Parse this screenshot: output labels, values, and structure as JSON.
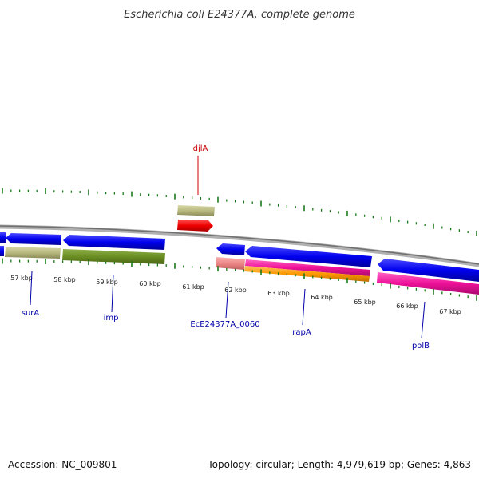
{
  "title": "Escherichia coli E24377A, complete genome",
  "footer": {
    "accession": "Accession: NC_009801",
    "summary": "Topology: circular; Length: 4,979,619 bp; Genes: 4,863"
  },
  "kbp_labels": [
    "57 kbp",
    "58 kbp",
    "59 kbp",
    "60 kbp",
    "61 kbp",
    "62 kbp",
    "63 kbp",
    "64 kbp",
    "65 kbp",
    "66 kbp",
    "67 kbp"
  ],
  "gene_labels": [
    {
      "id": "djlA",
      "text": "djlA",
      "color": "#cc0000"
    },
    {
      "id": "surA",
      "text": "surA",
      "color": "#0000aa"
    },
    {
      "id": "imp",
      "text": "imp",
      "color": "#0000aa"
    },
    {
      "id": "EcE24377A_0060",
      "text": "EcE24377A_0060",
      "color": "#0000aa"
    },
    {
      "id": "rapA",
      "text": "rapA",
      "color": "#0000aa"
    },
    {
      "id": "polB",
      "text": "polB",
      "color": "#0000aa"
    }
  ],
  "colors": {
    "backbone": "#808080",
    "tick": "#1a7a1a",
    "cds": "#0000ee",
    "gene_khaki": "#b8b880",
    "gene_olive": "#6b8e23",
    "gene_red": "#ee0000",
    "gene_salmon": "#ee8888",
    "gene_pink": "#ee1199",
    "gene_orange": "#ff9900"
  }
}
